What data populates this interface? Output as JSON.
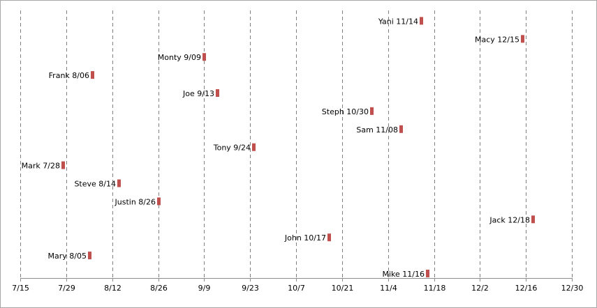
{
  "chart_data": {
    "type": "scatter",
    "title": "",
    "xlabel": "",
    "ylabel": "",
    "x_axis": {
      "type": "date",
      "year": 2013,
      "min": "2013-07-15",
      "max": "2013-12-30",
      "ticks": [
        "7/15",
        "7/29",
        "8/12",
        "8/26",
        "9/9",
        "9/23",
        "10/7",
        "10/21",
        "11/4",
        "11/18",
        "12/2",
        "12/16",
        "12/30"
      ],
      "gridlines": "vertical-dashed"
    },
    "y_axis": {
      "visible": false,
      "min": 0,
      "max": 16
    },
    "marker": {
      "shape": "bar",
      "color": "#c0504d"
    },
    "points": [
      {
        "label": "Yani 11/14",
        "date": "2013-11-14",
        "row": 15
      },
      {
        "label": "Macy 12/15",
        "date": "2013-12-15",
        "row": 14
      },
      {
        "label": "Monty 9/09",
        "date": "2013-09-09",
        "row": 13
      },
      {
        "label": "Frank 8/06",
        "date": "2013-08-06",
        "row": 12
      },
      {
        "label": "Joe 9/13",
        "date": "2013-09-13",
        "row": 11
      },
      {
        "label": "Steph 10/30",
        "date": "2013-10-30",
        "row": 10
      },
      {
        "label": "Sam 11/08",
        "date": "2013-11-08",
        "row": 9
      },
      {
        "label": "Tony 9/24",
        "date": "2013-09-24",
        "row": 8
      },
      {
        "label": "Mark 7/28",
        "date": "2013-07-28",
        "row": 7
      },
      {
        "label": "Steve  8/14",
        "date": "2013-08-14",
        "row": 6
      },
      {
        "label": "Justin 8/26",
        "date": "2013-08-26",
        "row": 5
      },
      {
        "label": "Jack 12/18",
        "date": "2013-12-18",
        "row": 4
      },
      {
        "label": "John 10/17",
        "date": "2013-10-17",
        "row": 3
      },
      {
        "label": "Mary 8/05",
        "date": "2013-08-05",
        "row": 2
      },
      {
        "label": "Mike 11/16",
        "date": "2013-11-16",
        "row": 1
      }
    ]
  }
}
